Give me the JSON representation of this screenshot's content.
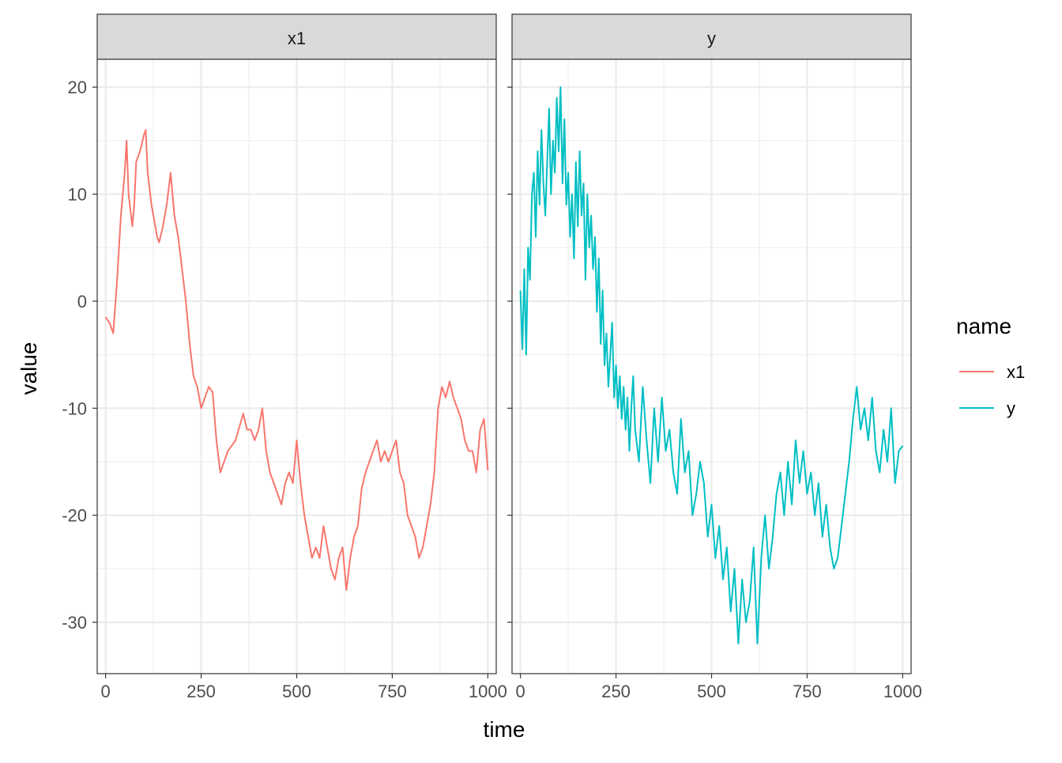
{
  "chart_data": {
    "type": "line",
    "facet_by": "name",
    "panels": [
      "x1",
      "y"
    ],
    "xlabel": "time",
    "ylabel": "value",
    "xlim": [
      -22,
      1022
    ],
    "ylim": [
      -34.8,
      22.6
    ],
    "x_ticks": [
      0,
      250,
      500,
      750,
      1000
    ],
    "y_ticks": [
      20,
      10,
      0,
      -10,
      -20,
      -30
    ],
    "grid": true,
    "legend": {
      "title": "name",
      "position": "right",
      "entries": [
        {
          "label": "x1",
          "color": "#F8766D"
        },
        {
          "label": "y",
          "color": "#00BFC4"
        }
      ]
    },
    "series": [
      {
        "name": "x1",
        "color": "#F8766D",
        "x": [
          0,
          10,
          20,
          30,
          40,
          50,
          55,
          60,
          70,
          75,
          80,
          90,
          100,
          105,
          110,
          120,
          130,
          135,
          140,
          150,
          160,
          170,
          175,
          180,
          190,
          200,
          210,
          220,
          230,
          240,
          250,
          260,
          270,
          280,
          290,
          300,
          320,
          340,
          360,
          370,
          380,
          390,
          400,
          410,
          420,
          430,
          440,
          450,
          460,
          470,
          480,
          490,
          500,
          510,
          520,
          530,
          540,
          550,
          560,
          570,
          580,
          590,
          600,
          610,
          620,
          630,
          640,
          650,
          660,
          670,
          680,
          690,
          700,
          710,
          720,
          730,
          740,
          750,
          760,
          770,
          780,
          790,
          800,
          810,
          820,
          830,
          840,
          850,
          860,
          870,
          880,
          890,
          900,
          910,
          920,
          930,
          940,
          950,
          960,
          970,
          980,
          990,
          1000
        ],
        "values": [
          -1.5,
          -2,
          -3,
          2,
          8,
          12,
          15,
          10,
          7,
          9,
          13,
          14,
          15.5,
          16,
          12,
          9,
          7,
          6,
          5.5,
          7,
          9,
          12,
          10,
          8,
          6,
          3,
          0,
          -4,
          -7,
          -8,
          -10,
          -9,
          -8,
          -8.5,
          -13,
          -16,
          -14,
          -13,
          -10.5,
          -12,
          -12,
          -13,
          -12,
          -10,
          -14,
          -16,
          -17,
          -18,
          -19,
          -17,
          -16,
          -17,
          -13,
          -17,
          -20,
          -22,
          -24,
          -23,
          -24,
          -21,
          -23,
          -25,
          -26,
          -24,
          -23,
          -27,
          -24,
          -22,
          -21,
          -17.5,
          -16,
          -15,
          -14,
          -13,
          -15,
          -14,
          -15,
          -14,
          -13,
          -16,
          -17,
          -20,
          -21,
          -22,
          -24,
          -23,
          -21,
          -19,
          -16,
          -10,
          -8,
          -9,
          -7.5,
          -9,
          -10,
          -11,
          -13,
          -14,
          -14,
          -16,
          -12,
          -11,
          -15.8
        ]
      },
      {
        "name": "y",
        "color": "#00BFC4",
        "x": [
          0,
          5,
          10,
          15,
          20,
          25,
          30,
          35,
          40,
          45,
          50,
          55,
          60,
          65,
          70,
          75,
          80,
          85,
          90,
          95,
          100,
          105,
          110,
          115,
          120,
          125,
          130,
          135,
          140,
          145,
          150,
          155,
          160,
          165,
          170,
          175,
          180,
          185,
          190,
          195,
          200,
          205,
          210,
          215,
          220,
          225,
          230,
          235,
          240,
          245,
          250,
          255,
          260,
          265,
          270,
          275,
          280,
          285,
          290,
          295,
          300,
          310,
          320,
          330,
          340,
          350,
          360,
          370,
          380,
          390,
          400,
          410,
          420,
          430,
          440,
          450,
          460,
          470,
          480,
          490,
          500,
          510,
          520,
          530,
          540,
          550,
          560,
          570,
          580,
          590,
          600,
          610,
          620,
          630,
          640,
          650,
          660,
          670,
          680,
          690,
          700,
          710,
          720,
          730,
          740,
          750,
          760,
          770,
          780,
          790,
          800,
          810,
          820,
          830,
          840,
          850,
          860,
          870,
          880,
          890,
          900,
          910,
          920,
          930,
          940,
          950,
          960,
          970,
          980,
          990,
          1000
        ],
        "values": [
          1,
          -4.5,
          3,
          -5,
          5,
          2,
          10,
          12,
          6,
          14,
          9,
          16,
          11,
          8,
          13,
          18,
          10,
          15,
          12,
          19,
          14,
          20,
          11,
          17,
          9,
          12,
          6,
          10,
          4,
          13,
          7,
          14,
          8,
          11,
          2,
          10,
          5,
          8,
          3,
          6,
          -1,
          4,
          -4,
          1,
          -6,
          -3,
          -8,
          -5,
          -2,
          -9,
          -6,
          -10,
          -7,
          -11,
          -8,
          -12,
          -9,
          -14,
          -10,
          -7,
          -12,
          -15,
          -8,
          -13,
          -17,
          -10,
          -15,
          -9,
          -14,
          -12,
          -16,
          -18,
          -11,
          -16,
          -14,
          -20,
          -18,
          -15,
          -17,
          -22,
          -19,
          -24,
          -21,
          -26,
          -23,
          -29,
          -25,
          -32,
          -26,
          -30,
          -28,
          -23,
          -32,
          -24,
          -20,
          -25,
          -22,
          -18,
          -16,
          -20,
          -15,
          -19,
          -13,
          -17,
          -14,
          -18,
          -16,
          -20,
          -17,
          -22,
          -19,
          -23,
          -25,
          -24,
          -21,
          -18,
          -15,
          -11,
          -8,
          -12,
          -10,
          -13,
          -9,
          -14,
          -16,
          -12,
          -15,
          -10,
          -17,
          -14,
          -13.5
        ]
      }
    ]
  }
}
